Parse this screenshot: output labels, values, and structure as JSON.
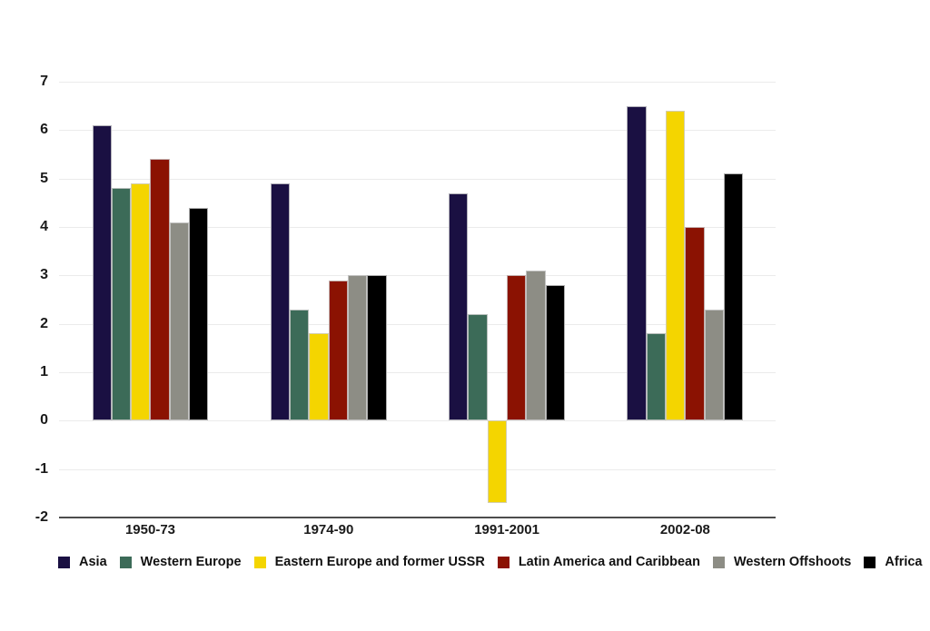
{
  "chart_data": {
    "type": "bar",
    "title": "",
    "xlabel": "",
    "ylabel": "",
    "categories": [
      "1950-73",
      "1974-90",
      "1991-2001",
      "2002-08"
    ],
    "series": [
      {
        "name": "Asia",
        "color": "#1a1042",
        "values": [
          6.1,
          4.9,
          4.7,
          6.5
        ]
      },
      {
        "name": "Western Europe",
        "color": "#3c6b58",
        "values": [
          4.8,
          2.3,
          2.2,
          1.8
        ]
      },
      {
        "name": "Eastern Europe and former USSR",
        "color": "#f4d500",
        "values": [
          4.9,
          1.8,
          -1.7,
          6.4
        ]
      },
      {
        "name": "Latin America and Caribbean",
        "color": "#8b1202",
        "values": [
          5.4,
          2.9,
          3.0,
          4.0
        ]
      },
      {
        "name": "Western Offshoots",
        "color": "#8d8d85",
        "values": [
          4.1,
          3.0,
          3.1,
          2.3
        ]
      },
      {
        "name": "Africa",
        "color": "#000000",
        "values": [
          4.4,
          3.0,
          2.8,
          5.1
        ]
      }
    ],
    "ylim": [
      -2,
      7
    ],
    "yticks": [
      7,
      6,
      5,
      4,
      3,
      2,
      1,
      0,
      -1,
      -2
    ],
    "grid": "horizontal-light",
    "gridline_color": "#ebebeb",
    "axis_line_color": "#4d4d4d",
    "text_color": "#1a1a1a",
    "background": "#ffffff",
    "legend_position": "bottom"
  }
}
